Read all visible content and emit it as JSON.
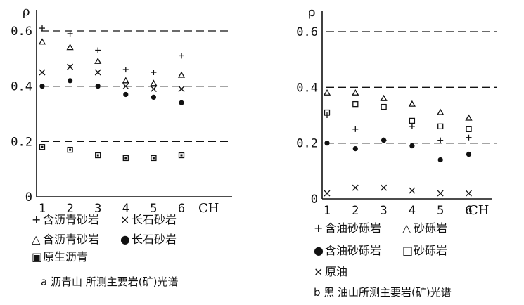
{
  "chart_data": [
    {
      "type": "scatter",
      "panel": "a",
      "caption": "a 沥青山 所测主要岩(矿)光谱",
      "ylabel": "ρ",
      "xlabel": "CH",
      "x_ticks": [
        "1",
        "2",
        "3",
        "4",
        "5",
        "6"
      ],
      "y_ticks": [
        "0",
        "0.2",
        "0.4",
        "0.6"
      ],
      "xlim": [
        0.6,
        6.6
      ],
      "ylim": [
        0,
        0.65
      ],
      "grid": "dashed horizontal lines at 0.2, 0.4, 0.6",
      "legend": [
        {
          "symbol": "+",
          "label": "含沥青砂岩"
        },
        {
          "symbol": "×",
          "label": "长石砂岩"
        },
        {
          "symbol": "△",
          "label": "含沥青砂岩"
        },
        {
          "symbol": "●",
          "label": "长石砂岩"
        },
        {
          "symbol": "▣",
          "label": "原生沥青"
        }
      ],
      "series": [
        {
          "symbol": "+",
          "x": [
            1,
            2,
            3,
            4,
            5,
            6
          ],
          "y": [
            0.61,
            0.59,
            0.53,
            0.46,
            0.45,
            0.51
          ]
        },
        {
          "symbol": "△",
          "x": [
            1,
            2,
            3,
            4,
            5,
            6
          ],
          "y": [
            0.56,
            0.54,
            0.49,
            0.42,
            0.41,
            0.44
          ]
        },
        {
          "symbol": "×",
          "x": [
            1,
            2,
            3,
            4,
            5,
            6
          ],
          "y": [
            0.45,
            0.47,
            0.45,
            0.4,
            0.39,
            0.39
          ]
        },
        {
          "symbol": "●",
          "x": [
            1,
            2,
            3,
            4,
            5,
            6
          ],
          "y": [
            0.4,
            0.42,
            0.4,
            0.37,
            0.36,
            0.34
          ]
        },
        {
          "symbol": "▣",
          "x": [
            1,
            2,
            3,
            4,
            5,
            6
          ],
          "y": [
            0.18,
            0.17,
            0.15,
            0.14,
            0.14,
            0.15
          ]
        }
      ]
    },
    {
      "type": "scatter",
      "panel": "b",
      "caption": "b 黑 油山所测主要岩(矿)光谱",
      "ylabel": "ρ",
      "xlabel": "CH",
      "x_ticks": [
        "1",
        "2",
        "3",
        "4",
        "5",
        "6"
      ],
      "y_ticks": [
        "0",
        "0.2",
        "0.4",
        "0.6"
      ],
      "xlim": [
        0.6,
        6.6
      ],
      "ylim": [
        0,
        0.65
      ],
      "grid": "dashed horizontal lines at 0.2, 0.4, 0.6",
      "legend": [
        {
          "symbol": "+",
          "label": "含油砂砾岩"
        },
        {
          "symbol": "△",
          "label": "砂砾岩"
        },
        {
          "symbol": "●",
          "label": "含油砂砾岩"
        },
        {
          "symbol": "□",
          "label": "砂砾岩"
        },
        {
          "symbol": "×",
          "label": "原油"
        }
      ],
      "series": [
        {
          "symbol": "△",
          "x": [
            1,
            2,
            3,
            4,
            5,
            6
          ],
          "y": [
            0.38,
            0.38,
            0.36,
            0.34,
            0.31,
            0.29
          ]
        },
        {
          "symbol": "□",
          "x": [
            1,
            2,
            3,
            4,
            5,
            6
          ],
          "y": [
            0.31,
            0.34,
            0.33,
            0.28,
            0.26,
            0.25
          ]
        },
        {
          "symbol": "+",
          "x": [
            1,
            2,
            3,
            4,
            5,
            6
          ],
          "y": [
            0.3,
            0.25,
            0.21,
            0.26,
            0.21,
            0.22
          ]
        },
        {
          "symbol": "●",
          "x": [
            1,
            2,
            3,
            4,
            5,
            6
          ],
          "y": [
            0.2,
            0.18,
            0.21,
            0.19,
            0.14,
            0.16
          ]
        },
        {
          "symbol": "×",
          "x": [
            1,
            2,
            3,
            4,
            5,
            6
          ],
          "y": [
            0.02,
            0.04,
            0.04,
            0.03,
            0.02,
            0.02
          ]
        }
      ]
    }
  ]
}
